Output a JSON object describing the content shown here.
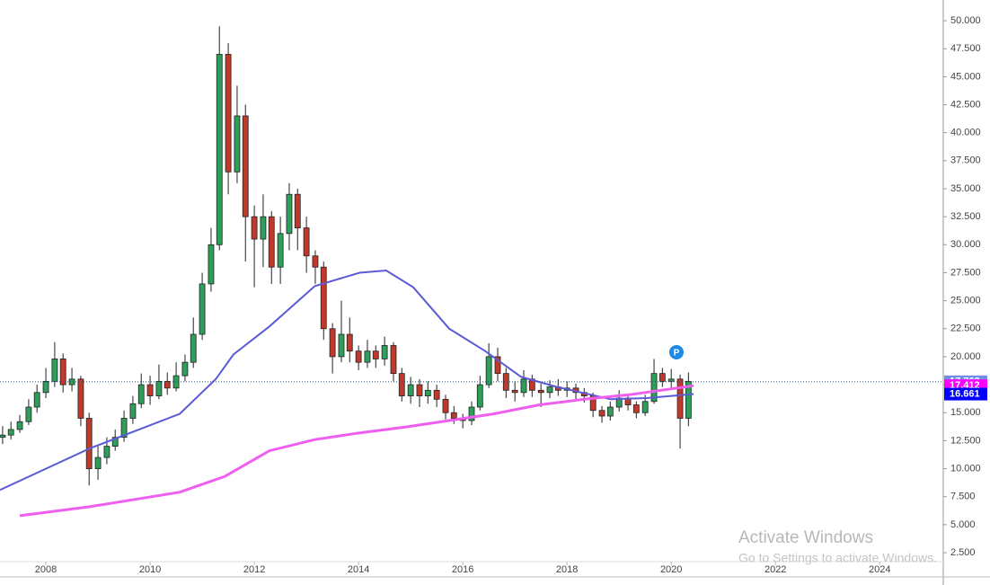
{
  "chart_data": {
    "type": "candlestick",
    "xlim": [
      2007.12,
      2025.22
    ],
    "ylim": [
      1.7,
      51.85
    ],
    "xticks": [
      2008,
      2010,
      2012,
      2014,
      2016,
      2018,
      2020,
      2022,
      2024
    ],
    "yticks": [
      {
        "value": 2.5,
        "label": "2.500"
      },
      {
        "value": 5,
        "label": "5.000"
      },
      {
        "value": 7.5,
        "label": "7.500"
      },
      {
        "value": 10,
        "label": "10.000"
      },
      {
        "value": 12.5,
        "label": "12.500"
      },
      {
        "value": 15,
        "label": "15.000"
      },
      {
        "value": 17.5,
        "label": "17.500"
      },
      {
        "value": 20,
        "label": "20.000"
      },
      {
        "value": 22.5,
        "label": "22.500"
      },
      {
        "value": 25,
        "label": "25.000"
      },
      {
        "value": 27.5,
        "label": "27.500"
      },
      {
        "value": 30,
        "label": "30.000"
      },
      {
        "value": 32.5,
        "label": "32.500"
      },
      {
        "value": 35,
        "label": "35.000"
      },
      {
        "value": 37.5,
        "label": "37.500"
      },
      {
        "value": 40,
        "label": "40.000"
      },
      {
        "value": 42.5,
        "label": "42.500"
      },
      {
        "value": 45,
        "label": "45.000"
      },
      {
        "value": 47.5,
        "label": "47.500"
      },
      {
        "value": 50,
        "label": "50.000"
      }
    ],
    "up_color": "#2e9e5b",
    "down_color": "#c0392b",
    "x": [
      2007.17,
      2007.33,
      2007.5,
      2007.67,
      2007.83,
      2008.0,
      2008.17,
      2008.33,
      2008.5,
      2008.67,
      2008.83,
      2009.0,
      2009.17,
      2009.33,
      2009.5,
      2009.67,
      2009.83,
      2010.0,
      2010.17,
      2010.33,
      2010.5,
      2010.67,
      2010.83,
      2011.0,
      2011.17,
      2011.33,
      2011.5,
      2011.67,
      2011.83,
      2012.0,
      2012.17,
      2012.33,
      2012.5,
      2012.67,
      2012.83,
      2013.0,
      2013.17,
      2013.33,
      2013.5,
      2013.67,
      2013.83,
      2014.0,
      2014.17,
      2014.33,
      2014.5,
      2014.67,
      2014.83,
      2015.0,
      2015.17,
      2015.33,
      2015.5,
      2015.67,
      2015.83,
      2016.0,
      2016.17,
      2016.33,
      2016.5,
      2016.67,
      2016.83,
      2017.0,
      2017.17,
      2017.33,
      2017.5,
      2017.67,
      2017.83,
      2018.0,
      2018.17,
      2018.33,
      2018.5,
      2018.67,
      2018.83,
      2019.0,
      2019.17,
      2019.33,
      2019.5,
      2019.67,
      2019.83,
      2020.0,
      2020.17,
      2020.33
    ],
    "open": [
      12.8,
      13.0,
      13.5,
      14.2,
      15.5,
      16.8,
      17.8,
      19.8,
      17.5,
      18.0,
      14.5,
      10.0,
      11.0,
      12.0,
      12.8,
      14.5,
      15.8,
      17.5,
      16.5,
      17.8,
      17.2,
      18.3,
      19.5,
      22.0,
      26.5,
      30.0,
      47.0,
      36.5,
      41.5,
      32.5,
      30.5,
      32.5,
      28.0,
      31.0,
      34.5,
      31.5,
      29.0,
      28.0,
      22.5,
      20.0,
      22.0,
      20.5,
      19.5,
      20.5,
      19.8,
      21.0,
      18.5,
      16.5,
      17.5,
      16.5,
      17.0,
      16.2,
      15.0,
      14.5,
      14.3,
      15.5,
      17.5,
      20.0,
      18.5,
      17.0,
      16.8,
      18.0,
      17.0,
      16.8,
      17.3,
      17.0,
      17.2,
      16.8,
      16.5,
      15.2,
      14.7,
      15.5,
      16.3,
      15.7,
      15.0,
      16.0,
      18.5,
      17.8,
      18.0,
      14.5
    ],
    "high": [
      13.8,
      14.2,
      14.8,
      16.2,
      17.5,
      19.0,
      21.3,
      20.3,
      19.0,
      18.3,
      15.0,
      12.0,
      12.8,
      13.5,
      15.2,
      16.5,
      18.5,
      18.3,
      19.3,
      18.6,
      19.5,
      20.2,
      23.5,
      27.5,
      31.5,
      49.5,
      48.0,
      44.2,
      42.5,
      33.5,
      34.5,
      33.0,
      32.5,
      35.5,
      35.0,
      32.5,
      29.5,
      28.5,
      23.0,
      25.0,
      23.5,
      21.0,
      21.5,
      21.0,
      21.8,
      21.3,
      19.0,
      18.2,
      18.0,
      17.8,
      17.5,
      16.6,
      15.6,
      14.9,
      16.0,
      18.3,
      21.2,
      20.8,
      19.0,
      17.8,
      18.8,
      18.4,
      17.6,
      17.9,
      18.0,
      17.8,
      17.6,
      17.2,
      16.8,
      15.6,
      16.0,
      17.0,
      16.6,
      16.0,
      16.6,
      19.8,
      19.0,
      18.9,
      18.4,
      18.6
    ],
    "low": [
      12.2,
      12.6,
      13.2,
      13.9,
      15.0,
      16.3,
      17.3,
      16.8,
      16.9,
      13.8,
      8.5,
      9.0,
      10.4,
      11.6,
      12.4,
      14.0,
      15.4,
      15.7,
      16.2,
      16.6,
      16.9,
      17.8,
      19.0,
      21.5,
      25.8,
      29.5,
      34.5,
      35.5,
      28.5,
      26.2,
      28.0,
      26.5,
      26.5,
      29.5,
      29.5,
      27.5,
      26.5,
      21.5,
      18.5,
      19.5,
      19.5,
      18.8,
      19.0,
      19.0,
      19.2,
      17.8,
      16.0,
      15.8,
      15.5,
      15.8,
      15.5,
      14.4,
      14.0,
      13.6,
      13.9,
      15.2,
      17.2,
      17.8,
      16.3,
      16.0,
      16.4,
      16.4,
      15.5,
      16.3,
      16.5,
      16.4,
      16.2,
      15.9,
      14.6,
      14.1,
      14.3,
      15.1,
      15.2,
      14.5,
      14.7,
      15.8,
      17.3,
      17.2,
      11.8,
      13.8
    ],
    "close": [
      13.0,
      13.5,
      14.2,
      15.5,
      16.8,
      17.8,
      19.8,
      17.5,
      18.0,
      14.5,
      10.0,
      11.0,
      12.0,
      12.8,
      14.5,
      15.8,
      17.5,
      16.5,
      17.8,
      17.2,
      18.3,
      19.5,
      22.0,
      26.5,
      30.0,
      47.0,
      36.5,
      41.5,
      32.5,
      30.5,
      32.5,
      28.0,
      31.0,
      34.5,
      31.5,
      29.0,
      28.0,
      22.5,
      20.0,
      22.0,
      20.5,
      19.5,
      20.5,
      19.8,
      21.0,
      18.5,
      16.5,
      17.5,
      16.5,
      17.0,
      16.2,
      15.0,
      14.5,
      14.3,
      15.5,
      17.5,
      20.0,
      18.5,
      17.0,
      16.8,
      18.0,
      17.0,
      16.8,
      17.3,
      17.0,
      17.2,
      16.8,
      16.5,
      15.2,
      14.7,
      15.5,
      16.3,
      15.7,
      15.0,
      16.0,
      18.5,
      17.8,
      18.0,
      14.5,
      17.8
    ],
    "lines": [
      {
        "color": "#5b5bd6",
        "x": [
          2007.12,
          2008.84,
          2010.57,
          2011.26,
          2011.6,
          2012.29,
          2013.16,
          2014.02,
          2014.53,
          2015.05,
          2015.74,
          2016.43,
          2017.12,
          2017.81,
          2018.84,
          2019.53,
          2020.43
        ],
        "values": [
          8.1,
          11.8,
          14.9,
          18.0,
          20.2,
          22.7,
          26.3,
          27.5,
          27.7,
          26.2,
          22.5,
          20.5,
          18.2,
          17.3,
          16.2,
          16.3,
          16.661
        ]
      },
      {
        "color": "#f05ef0",
        "x": [
          2007.5,
          2008.84,
          2010.57,
          2011.43,
          2012.29,
          2013.16,
          2014.02,
          2014.88,
          2015.74,
          2016.6,
          2017.47,
          2018.33,
          2019.19,
          2020.43
        ],
        "values": [
          5.8,
          6.6,
          7.9,
          9.3,
          11.6,
          12.6,
          13.2,
          13.7,
          14.3,
          14.9,
          15.7,
          16.2,
          16.6,
          17.412
        ]
      }
    ],
    "price_line": 17.763,
    "price_labels": [
      {
        "value": 17.763,
        "color": "#6f8fe6"
      },
      {
        "value": 17.412,
        "color": "#ff00ff"
      },
      {
        "value": 16.661,
        "color": "#0000ff"
      }
    ],
    "marker": {
      "x": 2020.1,
      "y": 20.4,
      "label": "P"
    },
    "watermark": {
      "title": "Activate Windows",
      "subtitle": "Go to Settings to activate Windows."
    }
  }
}
